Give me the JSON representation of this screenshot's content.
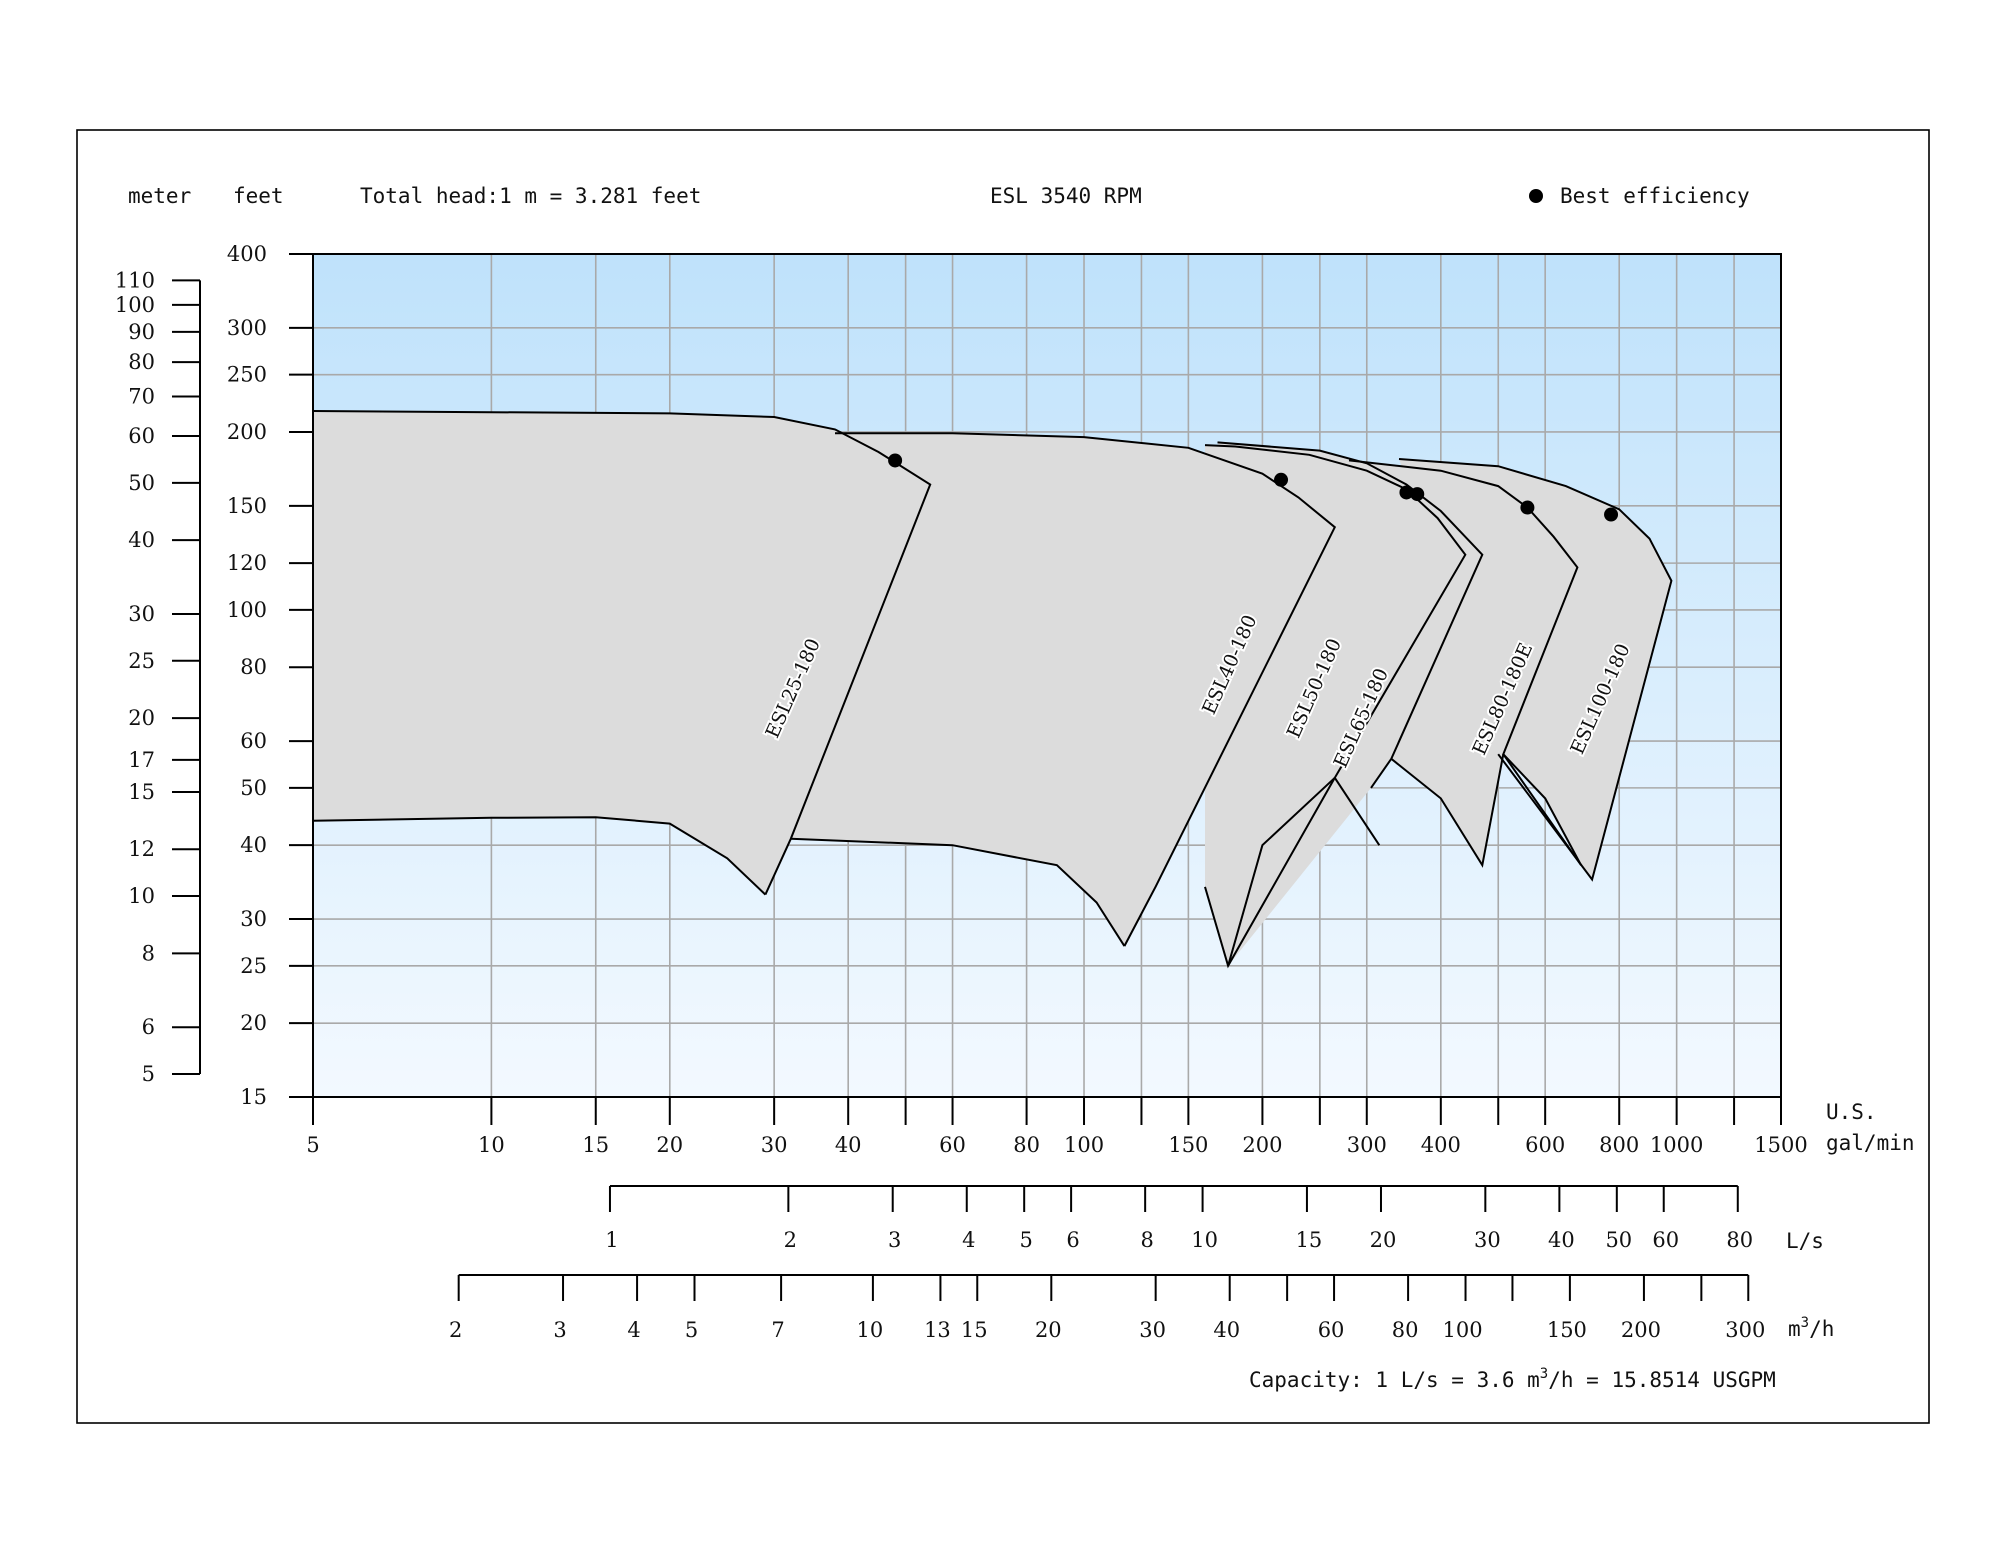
{
  "header": {
    "meter_label": "meter",
    "feet_label": "feet",
    "conversion_note": "Total head:1 m = 3.281 feet",
    "title": "ESL 3540 RPM",
    "legend_label": "Best efficiency"
  },
  "footer": {
    "capacity_prefix": "Capacity: 1 L/s = 3.6 m",
    "capacity_sup": "3",
    "capacity_suffix": "/h = 15.8514 USGPM"
  },
  "axes": {
    "x_unit_line1": "U.S.",
    "x_unit_line2": "gal/min",
    "ls_unit": "L/s",
    "m3h_unit_base": "m",
    "m3h_unit_sup": "3",
    "m3h_unit_suffix": "/h"
  },
  "colors": {
    "plot_top": "#bfe2fb",
    "plot_bottom": "#f3f9ff",
    "curve_fill": "#dcdcdc",
    "grid": "#a9a9a9",
    "ink": "#000000"
  },
  "chart_data": {
    "type": "area",
    "x_scale": "log",
    "y_scale": "log",
    "xlim": [
      5,
      1500
    ],
    "ylim": [
      15,
      400
    ],
    "xlabel": "U.S. gal/min",
    "ylabel": "feet",
    "title": "ESL 3540 RPM",
    "grid": true,
    "legend_placement": "top-right",
    "x_ticks": [
      "5",
      "10",
      "15",
      "20",
      "30",
      "40",
      "60",
      "80",
      "100",
      "150",
      "200",
      "300",
      "400",
      "600",
      "800",
      "1000",
      "1500"
    ],
    "x_tick_values": [
      5,
      10,
      15,
      20,
      30,
      40,
      60,
      80,
      100,
      150,
      200,
      300,
      400,
      600,
      800,
      1000,
      1500
    ],
    "x_grid_values": [
      10,
      15,
      20,
      30,
      40,
      50,
      60,
      80,
      100,
      125,
      150,
      200,
      250,
      300,
      400,
      500,
      600,
      800,
      1000,
      1250
    ],
    "y_ticks": [
      "15",
      "20",
      "25",
      "30",
      "40",
      "50",
      "60",
      "80",
      "100",
      "120",
      "150",
      "200",
      "250",
      "300",
      "400"
    ],
    "y_tick_values": [
      15,
      20,
      25,
      30,
      40,
      50,
      60,
      80,
      100,
      120,
      150,
      200,
      250,
      300,
      400
    ],
    "meter_ticks": [
      "5",
      "6",
      "8",
      "10",
      "12",
      "15",
      "17",
      "20",
      "25",
      "30",
      "40",
      "50",
      "60",
      "70",
      "80",
      "90",
      "100",
      "110"
    ],
    "meter_tick_values": [
      5,
      6,
      8,
      10,
      12,
      15,
      17,
      20,
      25,
      30,
      40,
      50,
      60,
      70,
      80,
      90,
      100,
      110
    ],
    "ls_ticks": [
      "1",
      "2",
      "3",
      "4",
      "5",
      "6",
      "8",
      "10",
      "15",
      "20",
      "30",
      "40",
      "50",
      "60",
      "80"
    ],
    "ls_tick_values": [
      1,
      2,
      3,
      4,
      5,
      6,
      8,
      10,
      15,
      20,
      30,
      40,
      50,
      60,
      80
    ],
    "m3h_ticks": [
      "2",
      "3",
      "4",
      "5",
      "7",
      "10",
      "13",
      "15",
      "20",
      "30",
      "40",
      "60",
      "80",
      "100",
      "150",
      "200",
      "300"
    ],
    "m3h_tick_values": [
      2,
      3,
      4,
      5,
      7,
      10,
      13,
      15,
      20,
      30,
      40,
      60,
      80,
      100,
      150,
      200,
      300
    ],
    "m3h_extra_ticks": [
      50,
      120,
      250
    ],
    "series": [
      {
        "name": "ESL25-180",
        "top": [
          [
            5,
            217
          ],
          [
            10,
            216
          ],
          [
            20,
            215
          ],
          [
            30,
            212
          ],
          [
            38,
            202
          ],
          [
            45,
            185
          ],
          [
            55,
            163
          ]
        ],
        "bottom": [
          [
            32,
            41
          ],
          [
            29,
            33
          ]
        ],
        "base": [
          [
            5,
            44
          ],
          [
            10,
            44.5
          ],
          [
            15,
            44.6
          ],
          [
            20,
            43.5
          ],
          [
            25,
            38
          ],
          [
            29,
            33
          ]
        ],
        "bep": [
          48,
          179
        ],
        "label_at": [
          33,
          73
        ]
      },
      {
        "name": "ESL40-180",
        "top": [
          [
            38,
            199
          ],
          [
            60,
            199
          ],
          [
            100,
            196
          ],
          [
            150,
            188
          ],
          [
            200,
            170
          ],
          [
            230,
            155
          ],
          [
            265,
            138
          ]
        ],
        "bottom": [
          [
            132,
            34
          ],
          [
            117,
            27
          ]
        ],
        "base": [
          [
            32,
            41
          ],
          [
            60,
            40
          ],
          [
            90,
            37
          ],
          [
            105,
            32
          ],
          [
            117,
            27
          ]
        ],
        "bep": [
          215,
          166
        ],
        "label_at": [
          180,
          80
        ]
      },
      {
        "name": "ESL50-180",
        "top": [
          [
            160,
            190
          ],
          [
            180,
            189
          ],
          [
            240,
            183
          ],
          [
            300,
            172
          ],
          [
            350,
            160
          ],
          [
            395,
            143
          ],
          [
            440,
            124
          ]
        ],
        "bottom": [
          [
            265,
            52
          ],
          [
            315,
            40
          ]
        ],
        "base": [
          [
            160,
            34
          ],
          [
            175,
            25
          ],
          [
            265,
            52
          ]
        ],
        "bep": [
          350,
          158
        ],
        "label_at": [
          250,
          73
        ]
      },
      {
        "name": "ESL65-180",
        "top": [
          [
            168,
            192
          ],
          [
            250,
            186
          ],
          [
            300,
            177
          ],
          [
            350,
            163
          ],
          [
            400,
            147
          ],
          [
            470,
            124
          ]
        ],
        "bottom": [
          [
            330,
            56
          ],
          [
            305,
            50
          ]
        ],
        "base": [
          [
            265,
            52
          ],
          [
            200,
            40
          ],
          [
            175,
            25
          ]
        ],
        "bep": [
          365,
          157
        ],
        "label_at": [
          300,
          65
        ]
      },
      {
        "name": "ESL80-180E",
        "top": [
          [
            280,
            179
          ],
          [
            400,
            172
          ],
          [
            500,
            162
          ],
          [
            560,
            149
          ],
          [
            620,
            133
          ],
          [
            680,
            118
          ]
        ],
        "bottom": [
          [
            510,
            57
          ],
          [
            690,
            37
          ]
        ],
        "base": [
          [
            330,
            56
          ],
          [
            400,
            48
          ],
          [
            470,
            37
          ],
          [
            510,
            57
          ]
        ],
        "bep": [
          560,
          149
        ],
        "label_at": [
          520,
          70
        ]
      },
      {
        "name": "ESL100-180",
        "top": [
          [
            340,
            180
          ],
          [
            500,
            175
          ],
          [
            650,
            162
          ],
          [
            800,
            148
          ],
          [
            900,
            132
          ],
          [
            980,
            112
          ]
        ],
        "bottom": [
          [
            720,
            35
          ],
          [
            500,
            57
          ]
        ],
        "base": [
          [
            510,
            57
          ],
          [
            600,
            48
          ],
          [
            690,
            37
          ]
        ],
        "bep": [
          775,
          145
        ],
        "label_at": [
          760,
          70
        ]
      }
    ]
  }
}
